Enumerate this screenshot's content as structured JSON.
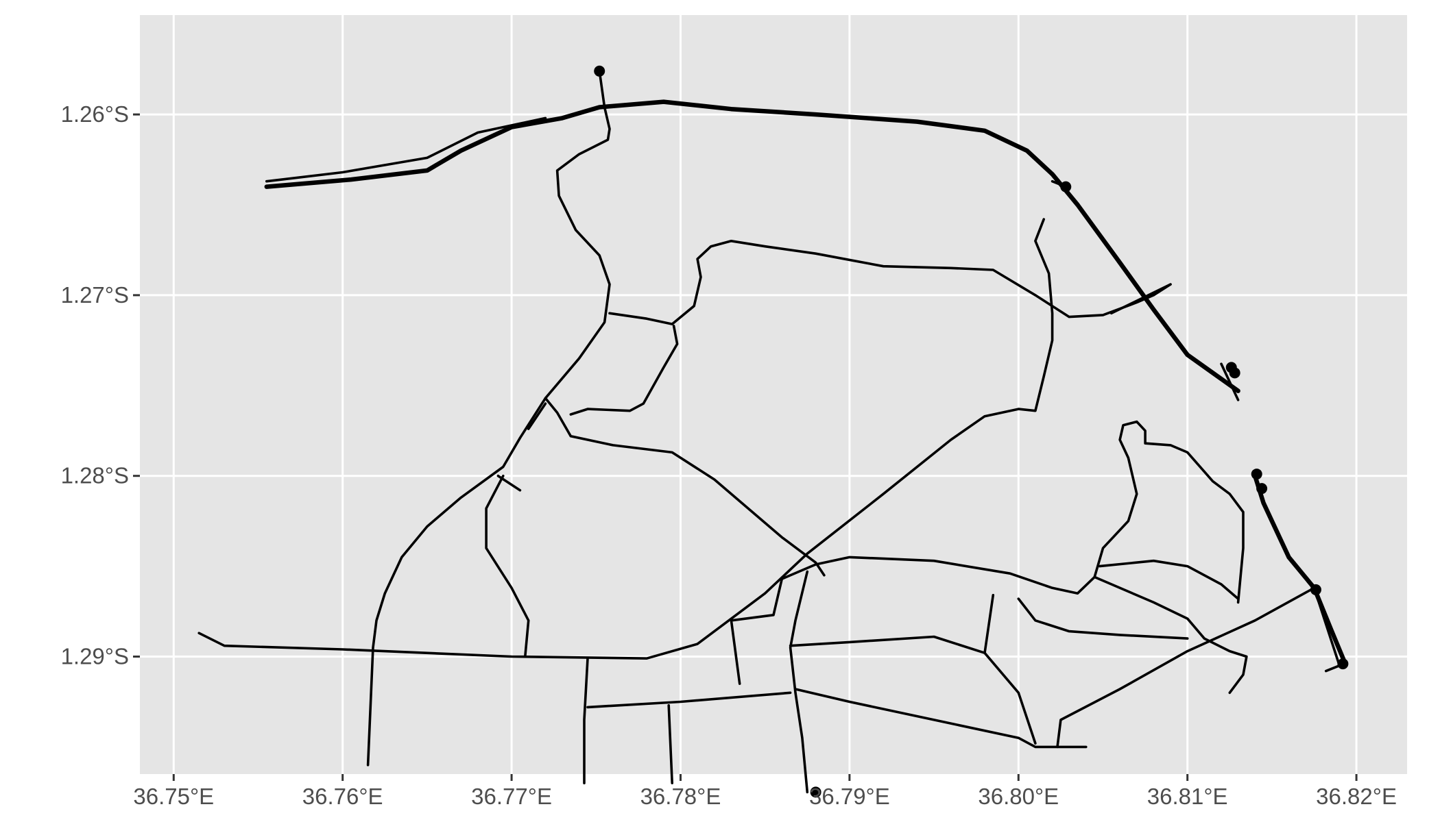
{
  "map": {
    "type": "road-network-plot",
    "background": "#e5e5e5",
    "grid_color": "#ffffff",
    "road_color": "#000000",
    "xlim": [
      36.748,
      36.823
    ],
    "ylim_lat": [
      -1.2965,
      -1.2545
    ],
    "x_axis": {
      "ticks": [
        {
          "value": 36.75,
          "label": "36.75°E"
        },
        {
          "value": 36.76,
          "label": "36.76°E"
        },
        {
          "value": 36.77,
          "label": "36.77°E"
        },
        {
          "value": 36.78,
          "label": "36.78°E"
        },
        {
          "value": 36.79,
          "label": "36.79°E"
        },
        {
          "value": 36.8,
          "label": "36.80°E"
        },
        {
          "value": 36.81,
          "label": "36.81°E"
        },
        {
          "value": 36.82,
          "label": "36.82°E"
        }
      ]
    },
    "y_axis": {
      "ticks": [
        {
          "value": -1.26,
          "label": "1.26°S"
        },
        {
          "value": -1.27,
          "label": "1.27°S"
        },
        {
          "value": -1.28,
          "label": "1.28°S"
        },
        {
          "value": -1.29,
          "label": "1.29°S"
        }
      ]
    },
    "roads": [
      {
        "class": "major",
        "coords": [
          [
            36.7555,
            -1.264
          ],
          [
            36.7605,
            -1.2636
          ],
          [
            36.765,
            -1.2631
          ],
          [
            36.767,
            -1.262
          ],
          [
            36.77,
            -1.2607
          ],
          [
            36.773,
            -1.2602
          ],
          [
            36.7752,
            -1.2596
          ],
          [
            36.779,
            -1.2593
          ],
          [
            36.781,
            -1.2595
          ],
          [
            36.783,
            -1.2597
          ],
          [
            36.788,
            -1.26
          ],
          [
            36.794,
            -1.2604
          ],
          [
            36.798,
            -1.2609
          ],
          [
            36.8005,
            -1.262
          ],
          [
            36.802,
            -1.2633
          ],
          [
            36.8035,
            -1.265
          ],
          [
            36.806,
            -1.2682
          ],
          [
            36.808,
            -1.2708
          ],
          [
            36.81,
            -1.2733
          ],
          [
            36.8115,
            -1.2743
          ],
          [
            36.813,
            -1.2753
          ]
        ]
      },
      {
        "class": "minor",
        "coords": [
          [
            36.7555,
            -1.2637
          ],
          [
            36.76,
            -1.2632
          ],
          [
            36.765,
            -1.2624
          ],
          [
            36.768,
            -1.261
          ],
          [
            36.772,
            -1.2602
          ]
        ]
      },
      {
        "class": "minor",
        "coords": [
          [
            36.7752,
            -1.2576
          ],
          [
            36.7755,
            -1.2596
          ],
          [
            36.7758,
            -1.2608
          ],
          [
            36.7757,
            -1.2614
          ],
          [
            36.774,
            -1.2622
          ],
          [
            36.7727,
            -1.2631
          ],
          [
            36.7728,
            -1.2645
          ],
          [
            36.7738,
            -1.2664
          ],
          [
            36.7752,
            -1.2678
          ],
          [
            36.7758,
            -1.2694
          ],
          [
            36.7755,
            -1.2715
          ],
          [
            36.774,
            -1.2735
          ],
          [
            36.772,
            -1.2757
          ],
          [
            36.7705,
            -1.2779
          ],
          [
            36.7695,
            -1.2795
          ],
          [
            36.767,
            -1.2812
          ],
          [
            36.765,
            -1.2828
          ],
          [
            36.7635,
            -1.2845
          ],
          [
            36.7625,
            -1.2865
          ],
          [
            36.762,
            -1.288
          ],
          [
            36.7618,
            -1.2895
          ],
          [
            36.7615,
            -1.296
          ]
        ]
      },
      {
        "class": "minor",
        "coords": [
          [
            36.7515,
            -1.2887
          ],
          [
            36.753,
            -1.2894
          ],
          [
            36.76,
            -1.2896
          ],
          [
            36.77,
            -1.29
          ],
          [
            36.778,
            -1.2901
          ],
          [
            36.781,
            -1.2893
          ],
          [
            36.785,
            -1.2865
          ],
          [
            36.7875,
            -1.2843
          ],
          [
            36.792,
            -1.281
          ],
          [
            36.796,
            -1.278
          ],
          [
            36.798,
            -1.2767
          ],
          [
            36.8,
            -1.2763
          ],
          [
            36.801,
            -1.2764
          ],
          [
            36.8015,
            -1.2745
          ],
          [
            36.802,
            -1.2725
          ],
          [
            36.802,
            -1.271
          ],
          [
            36.8018,
            -1.2688
          ],
          [
            36.801,
            -1.267
          ],
          [
            36.8015,
            -1.2658
          ]
        ]
      },
      {
        "class": "minor",
        "coords": [
          [
            36.7758,
            -1.271
          ],
          [
            36.778,
            -1.2713
          ],
          [
            36.7795,
            -1.2716
          ],
          [
            36.7808,
            -1.2706
          ],
          [
            36.7812,
            -1.269
          ],
          [
            36.781,
            -1.268
          ],
          [
            36.7818,
            -1.2673
          ],
          [
            36.783,
            -1.267
          ],
          [
            36.785,
            -1.2673
          ],
          [
            36.788,
            -1.2677
          ],
          [
            36.792,
            -1.2684
          ],
          [
            36.796,
            -1.2685
          ],
          [
            36.7985,
            -1.2686
          ],
          [
            36.801,
            -1.27
          ],
          [
            36.803,
            -1.2712
          ],
          [
            36.805,
            -1.2711
          ],
          [
            36.807,
            -1.2704
          ],
          [
            36.808,
            -1.27
          ],
          [
            36.809,
            -1.2694
          ]
        ]
      },
      {
        "class": "minor",
        "coords": [
          [
            36.7796,
            -1.2717
          ],
          [
            36.7798,
            -1.2727
          ],
          [
            36.779,
            -1.274
          ],
          [
            36.7778,
            -1.276
          ],
          [
            36.777,
            -1.2764
          ],
          [
            36.7745,
            -1.2763
          ],
          [
            36.7735,
            -1.2766
          ]
        ]
      },
      {
        "class": "minor",
        "coords": [
          [
            36.772,
            -1.2757
          ],
          [
            36.7727,
            -1.2765
          ],
          [
            36.7735,
            -1.2778
          ],
          [
            36.776,
            -1.2783
          ],
          [
            36.7795,
            -1.2787
          ],
          [
            36.782,
            -1.2802
          ],
          [
            36.786,
            -1.2834
          ],
          [
            36.788,
            -1.2848
          ],
          [
            36.7885,
            -1.2855
          ]
        ]
      },
      {
        "class": "minor",
        "coords": [
          [
            36.7695,
            -1.28
          ],
          [
            36.7685,
            -1.2818
          ],
          [
            36.7685,
            -1.284
          ],
          [
            36.77,
            -1.2862
          ],
          [
            36.771,
            -1.288
          ],
          [
            36.7708,
            -1.29
          ]
        ]
      },
      {
        "class": "minor",
        "coords": [
          [
            36.788,
            -1.2849
          ],
          [
            36.787,
            -1.2853
          ],
          [
            36.786,
            -1.2857
          ],
          [
            36.7855,
            -1.2877
          ],
          [
            36.783,
            -1.288
          ],
          [
            36.7835,
            -1.2915
          ]
        ]
      },
      {
        "class": "minor",
        "coords": [
          [
            36.788,
            -1.2849
          ],
          [
            36.79,
            -1.2845
          ],
          [
            36.795,
            -1.2847
          ],
          [
            36.7995,
            -1.2854
          ],
          [
            36.802,
            -1.2862
          ],
          [
            36.8035,
            -1.2865
          ],
          [
            36.8045,
            -1.2856
          ],
          [
            36.808,
            -1.287
          ],
          [
            36.81,
            -1.2879
          ],
          [
            36.811,
            -1.289
          ],
          [
            36.8125,
            -1.2897
          ],
          [
            36.8135,
            -1.29
          ],
          [
            36.8133,
            -1.291
          ],
          [
            36.8125,
            -1.292
          ]
        ]
      },
      {
        "class": "minor",
        "coords": [
          [
            36.7875,
            -1.2853
          ],
          [
            36.7868,
            -1.288
          ],
          [
            36.7865,
            -1.2895
          ],
          [
            36.7868,
            -1.292
          ],
          [
            36.7872,
            -1.2945
          ],
          [
            36.7875,
            -1.2975
          ]
        ]
      },
      {
        "class": "minor",
        "coords": [
          [
            36.7865,
            -1.2894
          ],
          [
            36.79,
            -1.2892
          ],
          [
            36.795,
            -1.2889
          ],
          [
            36.798,
            -1.2898
          ],
          [
            36.8,
            -1.292
          ],
          [
            36.801,
            -1.2948
          ]
        ]
      },
      {
        "class": "minor",
        "coords": [
          [
            36.7868,
            -1.2918
          ],
          [
            36.79,
            -1.2925
          ],
          [
            36.795,
            -1.2935
          ],
          [
            36.8,
            -1.2945
          ],
          [
            36.801,
            -1.295
          ],
          [
            36.804,
            -1.295
          ]
        ]
      },
      {
        "class": "minor",
        "coords": [
          [
            36.7745,
            -1.2901
          ],
          [
            36.7743,
            -1.2935
          ],
          [
            36.7743,
            -1.297
          ]
        ]
      },
      {
        "class": "minor",
        "coords": [
          [
            36.7745,
            -1.2928
          ],
          [
            36.78,
            -1.2925
          ],
          [
            36.7865,
            -1.292
          ]
        ]
      },
      {
        "class": "minor",
        "coords": [
          [
            36.7793,
            -1.2927
          ],
          [
            36.7795,
            -1.297
          ]
        ]
      },
      {
        "class": "minor",
        "coords": [
          [
            36.7985,
            -1.2866
          ],
          [
            36.798,
            -1.2898
          ]
        ]
      },
      {
        "class": "minor",
        "coords": [
          [
            36.8,
            -1.2868
          ],
          [
            36.801,
            -1.288
          ],
          [
            36.803,
            -1.2886
          ],
          [
            36.806,
            -1.2888
          ],
          [
            36.81,
            -1.289
          ]
        ]
      },
      {
        "class": "minor",
        "coords": [
          [
            36.8023,
            -1.295
          ],
          [
            36.8025,
            -1.2935
          ],
          [
            36.806,
            -1.2918
          ],
          [
            36.81,
            -1.2897
          ],
          [
            36.814,
            -1.288
          ],
          [
            36.8175,
            -1.2862
          ]
        ]
      },
      {
        "class": "minor",
        "coords": [
          [
            36.8045,
            -1.2856
          ],
          [
            36.805,
            -1.284
          ],
          [
            36.8065,
            -1.2825
          ],
          [
            36.807,
            -1.281
          ],
          [
            36.8065,
            -1.279
          ],
          [
            36.806,
            -1.278
          ],
          [
            36.8062,
            -1.2772
          ],
          [
            36.807,
            -1.277
          ],
          [
            36.8075,
            -1.2775
          ],
          [
            36.8075,
            -1.2782
          ],
          [
            36.809,
            -1.2783
          ],
          [
            36.81,
            -1.2787
          ],
          [
            36.8115,
            -1.2803
          ],
          [
            36.8125,
            -1.281
          ],
          [
            36.8133,
            -1.282
          ],
          [
            36.8133,
            -1.284
          ],
          [
            36.813,
            -1.287
          ]
        ]
      },
      {
        "class": "minor",
        "coords": [
          [
            36.8048,
            -1.285
          ],
          [
            36.808,
            -1.2847
          ],
          [
            36.81,
            -1.285
          ],
          [
            36.812,
            -1.286
          ],
          [
            36.813,
            -1.2868
          ]
        ]
      },
      {
        "class": "major",
        "coords": [
          [
            36.814,
            -1.28
          ],
          [
            36.8145,
            -1.2815
          ],
          [
            36.816,
            -1.2845
          ],
          [
            36.8175,
            -1.2862
          ],
          [
            36.8185,
            -1.2885
          ],
          [
            36.8193,
            -1.2903
          ]
        ]
      },
      {
        "class": "minor",
        "coords": [
          [
            36.8175,
            -1.2862
          ],
          [
            36.819,
            -1.2905
          ],
          [
            36.8182,
            -1.2908
          ]
        ]
      },
      {
        "class": "minor",
        "coords": [
          [
            36.771,
            -1.2774
          ],
          [
            36.772,
            -1.276
          ]
        ]
      },
      {
        "class": "minor",
        "coords": [
          [
            36.7692,
            -1.28
          ],
          [
            36.7705,
            -1.2808
          ]
        ]
      },
      {
        "class": "minor",
        "coords": [
          [
            36.802,
            -1.2637
          ],
          [
            36.8028,
            -1.264
          ]
        ]
      },
      {
        "class": "minor",
        "coords": [
          [
            36.8055,
            -1.271
          ],
          [
            36.809,
            -1.2694
          ]
        ]
      },
      {
        "class": "minor",
        "coords": [
          [
            36.812,
            -1.2738
          ],
          [
            36.8125,
            -1.2748
          ],
          [
            36.813,
            -1.2758
          ]
        ]
      }
    ],
    "points": [
      {
        "lon": 36.7752,
        "lat": -1.2576
      },
      {
        "lon": 36.8028,
        "lat": -1.264
      },
      {
        "lon": 36.8126,
        "lat": -1.274
      },
      {
        "lon": 36.8128,
        "lat": -1.2743
      },
      {
        "lon": 36.8141,
        "lat": -1.2799
      },
      {
        "lon": 36.8144,
        "lat": -1.2807
      },
      {
        "lon": 36.8176,
        "lat": -1.2863
      },
      {
        "lon": 36.8192,
        "lat": -1.2904
      },
      {
        "lon": 36.788,
        "lat": -1.2975
      }
    ]
  }
}
